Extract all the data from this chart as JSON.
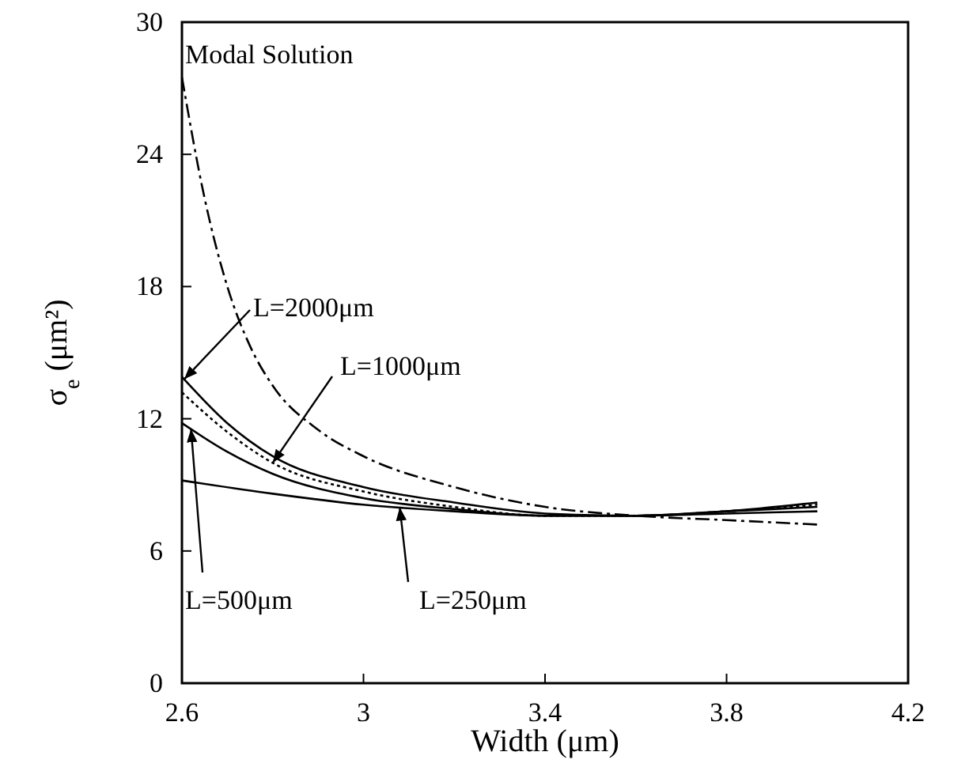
{
  "chart_data": {
    "type": "line",
    "xlabel": "Width (μm)",
    "ylabel": "σ$_{e}$ (μm²)",
    "xlim": [
      2.6,
      4.2
    ],
    "xticks": [
      2.6,
      3,
      3.4,
      3.8,
      4.2
    ],
    "ylim": [
      0,
      30
    ],
    "yticks": [
      0,
      6,
      12,
      18,
      24,
      30
    ],
    "grid": false,
    "legend": false,
    "series": [
      {
        "name": "Modal Solution",
        "color": "#000000",
        "line_style": "dashed",
        "x": [
          2.6,
          2.65,
          2.7,
          2.75,
          2.8,
          2.9,
          3.0,
          3.2,
          3.4,
          3.6,
          3.8,
          4.0
        ],
        "values": [
          27.5,
          22,
          18,
          15.3,
          13.5,
          11.5,
          10.3,
          8.9,
          8.0,
          7.6,
          7.4,
          7.2
        ]
      },
      {
        "name": "L=2000μm",
        "color": "#000000",
        "line_style": "solid",
        "x": [
          2.6,
          2.7,
          2.8,
          3.0,
          3.2,
          3.4,
          3.6,
          3.8,
          4.0
        ],
        "values": [
          13.9,
          11.8,
          10.3,
          8.9,
          8.2,
          7.7,
          7.6,
          7.8,
          8.0
        ]
      },
      {
        "name": "L=1000μm",
        "color": "#000000",
        "line_style": "dotted",
        "x": [
          2.6,
          2.7,
          2.8,
          3.0,
          3.2,
          3.4,
          3.6,
          3.8,
          4.0
        ],
        "values": [
          13.2,
          11.4,
          10.0,
          8.7,
          8.0,
          7.6,
          7.6,
          7.8,
          8.1
        ]
      },
      {
        "name": "L=500μm",
        "color": "#000000",
        "line_style": "solid",
        "x": [
          2.6,
          2.7,
          2.8,
          3.0,
          3.2,
          3.4,
          3.6,
          3.8,
          4.0
        ],
        "values": [
          11.8,
          10.5,
          9.5,
          8.4,
          7.9,
          7.6,
          7.6,
          7.8,
          8.2
        ]
      },
      {
        "name": "L=250μm",
        "color": "#000000",
        "line_style": "solid",
        "x": [
          2.6,
          2.8,
          3.0,
          3.2,
          3.4,
          3.6,
          3.8,
          4.0
        ],
        "values": [
          9.2,
          8.6,
          8.1,
          7.8,
          7.6,
          7.6,
          7.7,
          7.8
        ]
      }
    ]
  }
}
